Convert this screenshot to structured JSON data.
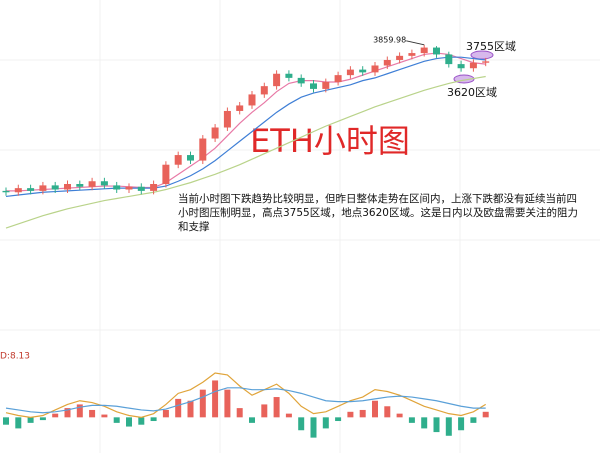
{
  "title": "ETH小时图",
  "annotations": [
    "3755区域",
    "3620区域"
  ],
  "commentary": "当前小时图下跌趋势比较明显，但昨日整体走势在区间内，上涨下跌都没有延续当前四小时图压制明显，高点3755区域，地点3620区域。这是日内以及欧盘需要关注的阻力和支撑",
  "chart_data": [
    {
      "type": "candlestick",
      "open": [
        2800,
        2790,
        2820,
        2800,
        2840,
        2810,
        2850,
        2830,
        2870,
        2840,
        2810,
        2830,
        2800,
        2850,
        2990,
        3060,
        3020,
        3180,
        3260,
        3380,
        3420,
        3500,
        3560,
        3650,
        3620,
        3580,
        3540,
        3590,
        3640,
        3680,
        3660,
        3710,
        3750,
        3780,
        3800,
        3840,
        3790,
        3720,
        3690,
        3730
      ],
      "high": [
        2825,
        2845,
        2845,
        2865,
        2865,
        2875,
        2875,
        2895,
        2895,
        2865,
        2855,
        2855,
        2875,
        3015,
        3085,
        3085,
        3205,
        3285,
        3405,
        3445,
        3525,
        3585,
        3675,
        3675,
        3645,
        3605,
        3615,
        3665,
        3705,
        3705,
        3735,
        3775,
        3805,
        3825,
        3859.98,
        3850,
        3810,
        3745,
        3755,
        3765
      ],
      "low": [
        2765,
        2765,
        2775,
        2775,
        2785,
        2785,
        2805,
        2805,
        2815,
        2785,
        2785,
        2775,
        2775,
        2825,
        2965,
        2995,
        2995,
        3155,
        3235,
        3355,
        3395,
        3475,
        3535,
        3595,
        3555,
        3515,
        3515,
        3565,
        3615,
        3635,
        3635,
        3685,
        3725,
        3755,
        3775,
        3765,
        3695,
        3665,
        3665,
        3705
      ],
      "close": [
        2790,
        2820,
        2800,
        2840,
        2810,
        2850,
        2830,
        2870,
        2840,
        2810,
        2830,
        2800,
        2850,
        2990,
        3060,
        3020,
        3180,
        3260,
        3380,
        3420,
        3500,
        3560,
        3650,
        3620,
        3580,
        3540,
        3590,
        3640,
        3680,
        3660,
        3710,
        3750,
        3780,
        3800,
        3840,
        3790,
        3720,
        3690,
        3730,
        3740
      ],
      "up_color": "#e8625a",
      "down_color": "#2fae8c",
      "ylim": [
        2480,
        4040
      ],
      "series": [
        {
          "color": "#e879a6",
          "values": [
            2800,
            2800,
            2805,
            2810,
            2815,
            2820,
            2825,
            2830,
            2835,
            2835,
            2830,
            2825,
            2825,
            2860,
            2920,
            2980,
            3040,
            3110,
            3200,
            3290,
            3370,
            3440,
            3520,
            3580,
            3600,
            3600,
            3590,
            3590,
            3610,
            3640,
            3670,
            3700,
            3730,
            3760,
            3790,
            3800,
            3790,
            3760,
            3730,
            3720
          ]
        },
        {
          "color": "#3f7fd6",
          "values": [
            2760,
            2770,
            2780,
            2790,
            2795,
            2800,
            2805,
            2810,
            2815,
            2820,
            2820,
            2820,
            2820,
            2835,
            2870,
            2910,
            2960,
            3020,
            3090,
            3160,
            3230,
            3300,
            3370,
            3430,
            3480,
            3510,
            3530,
            3550,
            3570,
            3600,
            3620,
            3650,
            3680,
            3710,
            3740,
            3760,
            3770,
            3770,
            3760,
            3750
          ]
        },
        {
          "color": "#b9d38a",
          "values": [
            2530,
            2560,
            2590,
            2620,
            2645,
            2670,
            2690,
            2710,
            2730,
            2745,
            2760,
            2775,
            2790,
            2810,
            2835,
            2860,
            2890,
            2920,
            2955,
            2990,
            3030,
            3070,
            3110,
            3150,
            3190,
            3230,
            3270,
            3305,
            3340,
            3375,
            3410,
            3440,
            3470,
            3500,
            3530,
            3555,
            3580,
            3600,
            3615,
            3630
          ]
        }
      ]
    },
    {
      "type": "macd",
      "label": "D:8.13",
      "values": [
        -8,
        -12,
        -6,
        -3,
        4,
        10,
        14,
        8,
        3,
        -6,
        -10,
        -8,
        -4,
        8,
        20,
        18,
        30,
        40,
        30,
        10,
        -6,
        14,
        22,
        4,
        -14,
        -22,
        -12,
        -4,
        6,
        8,
        18,
        12,
        4,
        -6,
        -12,
        -16,
        -20,
        -14,
        -6,
        6
      ],
      "up_color": "#e8625a",
      "down_color": "#2fae8c",
      "ylim": [
        -30,
        60
      ],
      "series": [
        {
          "color": "#e0a43a",
          "values": [
            5,
            2,
            0,
            2,
            8,
            14,
            18,
            16,
            12,
            6,
            2,
            0,
            4,
            14,
            26,
            30,
            38,
            48,
            46,
            34,
            24,
            30,
            36,
            26,
            12,
            4,
            6,
            12,
            18,
            22,
            30,
            28,
            24,
            18,
            12,
            8,
            4,
            2,
            6,
            14
          ]
        },
        {
          "color": "#5aa0d8",
          "values": [
            10,
            8,
            6,
            5,
            6,
            8,
            11,
            13,
            13,
            12,
            10,
            8,
            7,
            9,
            13,
            17,
            22,
            28,
            32,
            32,
            30,
            30,
            31,
            29,
            26,
            22,
            18,
            17,
            17,
            18,
            20,
            22,
            23,
            22,
            20,
            18,
            15,
            12,
            10,
            10
          ]
        }
      ]
    }
  ]
}
